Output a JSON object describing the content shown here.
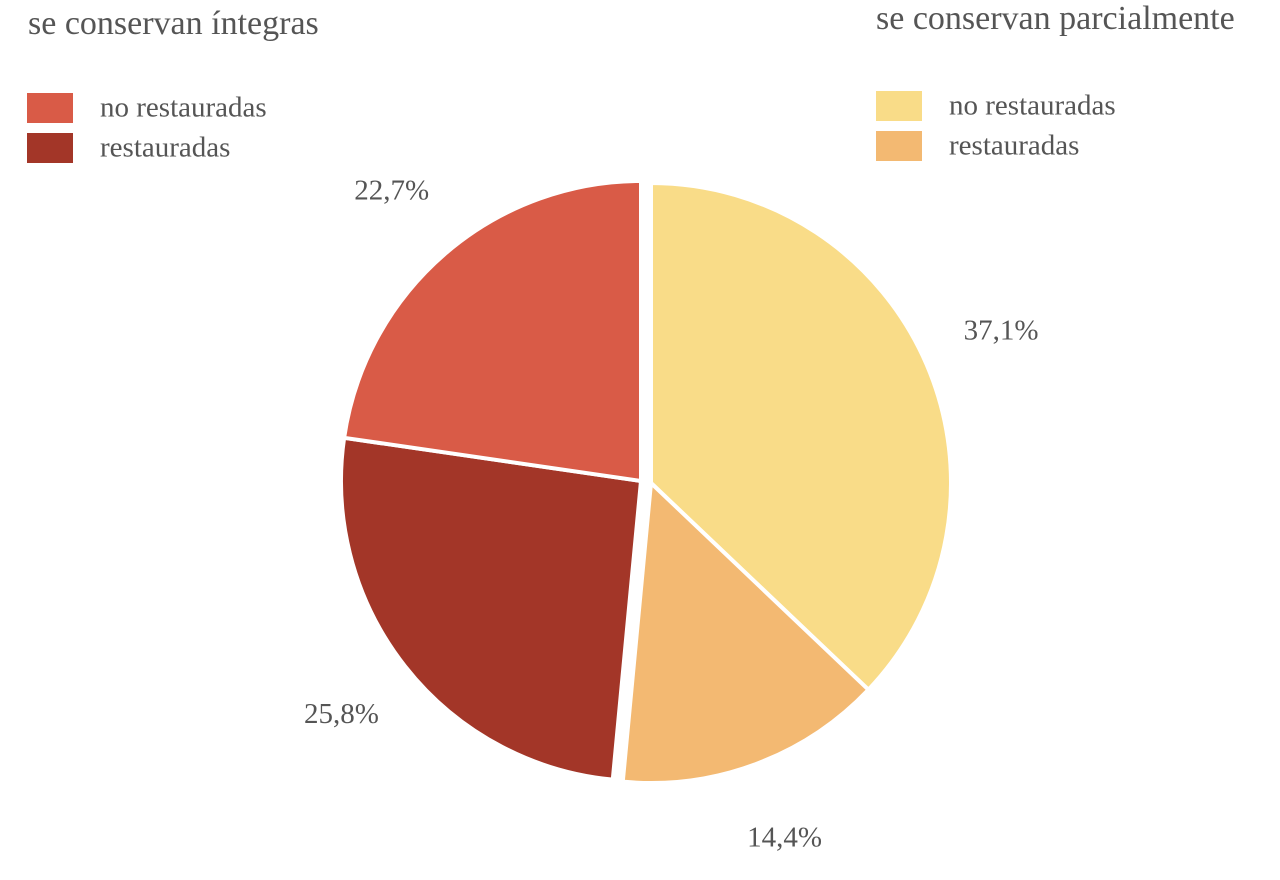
{
  "chart_data": {
    "type": "pie",
    "groups": [
      {
        "title": "se conservan íntegras",
        "series": [
          {
            "name": "no restauradas",
            "color": "#d95b47",
            "value": 22.7,
            "value_label": "22,7%"
          },
          {
            "name": "restauradas",
            "color": "#a33628",
            "value": 25.8,
            "value_label": "25,8%"
          }
        ]
      },
      {
        "title": "se conservan parcialmente",
        "series": [
          {
            "name": "no restauradas",
            "color": "#f9dc88",
            "value": 37.1,
            "value_label": "37,1%"
          },
          {
            "name": "restauradas",
            "color": "#f3b972",
            "value": 14.4,
            "value_label": "14,4%"
          }
        ]
      }
    ]
  }
}
